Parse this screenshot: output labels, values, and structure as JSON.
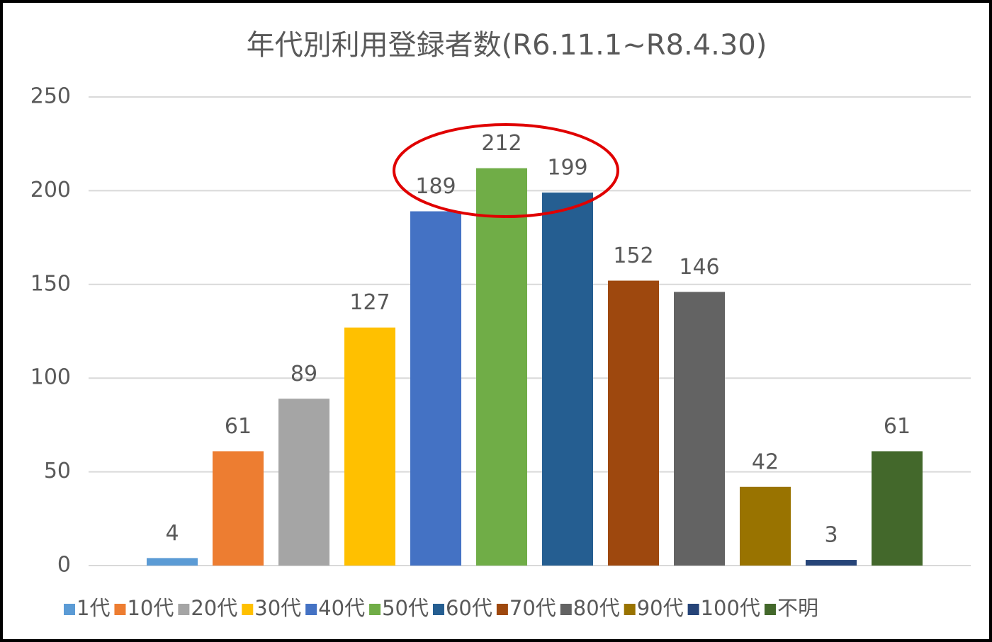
{
  "chart_data": {
    "type": "bar",
    "title": "年代別利用登録者数(R6.11.1~R8.4.30)",
    "categories": [
      "1代",
      "10代",
      "20代",
      "30代",
      "40代",
      "50代",
      "60代",
      "70代",
      "80代",
      "90代",
      "100代",
      "不明"
    ],
    "values": [
      4,
      61,
      89,
      127,
      189,
      212,
      199,
      152,
      146,
      42,
      3,
      61
    ],
    "colors": [
      "#5b9bd5",
      "#ed7d31",
      "#a5a5a5",
      "#ffc000",
      "#4472c4",
      "#70ad47",
      "#255e91",
      "#9e480e",
      "#636363",
      "#997300",
      "#264478",
      "#43682b"
    ],
    "ylim": [
      0,
      250
    ],
    "yticks": [
      0,
      50,
      100,
      150,
      200,
      250
    ],
    "grid": true,
    "legend": "bottom"
  }
}
